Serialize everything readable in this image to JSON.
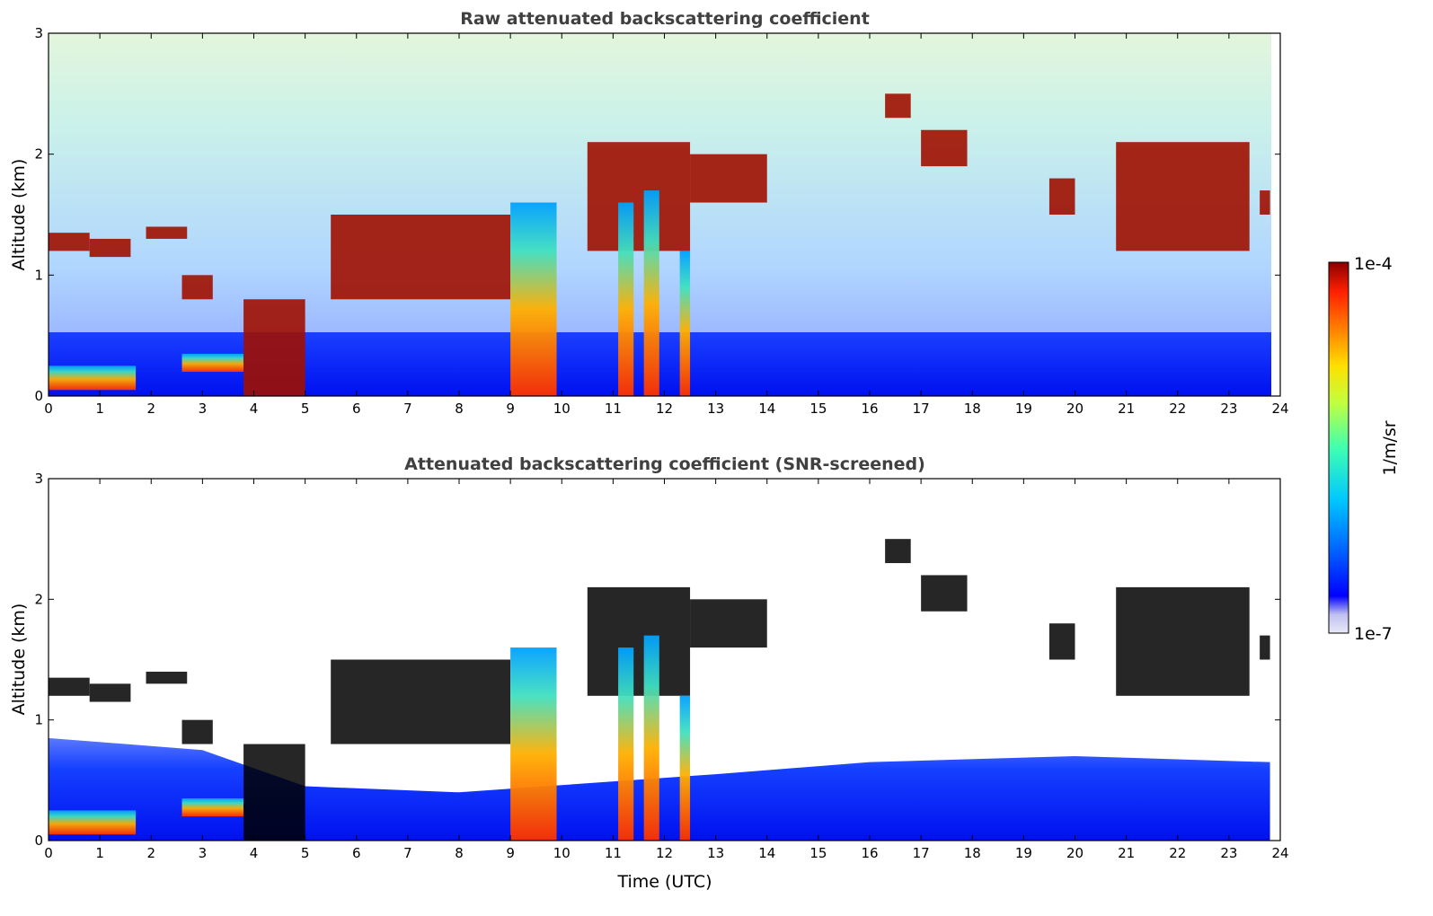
{
  "chart_data": [
    {
      "type": "heatmap",
      "title": "Raw attenuated backscattering coefficient",
      "xlabel": "",
      "ylabel": "Altitude (km)",
      "xlim": [
        0,
        24
      ],
      "ylim": [
        0,
        3
      ],
      "x_ticks": [
        "0",
        "1",
        "2",
        "3",
        "4",
        "5",
        "6",
        "7",
        "8",
        "9",
        "10",
        "11",
        "12",
        "13",
        "14",
        "15",
        "16",
        "17",
        "18",
        "19",
        "20",
        "21",
        "22",
        "23",
        "24"
      ],
      "y_ticks": [
        "0",
        "1",
        "2",
        "3"
      ],
      "data_end_hour": 23.8,
      "background_noise": [
        {
          "alt_range": [
            0,
            0.4
          ],
          "level": "high"
        },
        {
          "alt_range": [
            0.4,
            3
          ],
          "level": "noisy, increasing with altitude and daylight"
        }
      ],
      "cloud_layers": [
        {
          "t": [
            0.0,
            0.8
          ],
          "alt_km": [
            1.2,
            1.35
          ],
          "intensity": "1e-4"
        },
        {
          "t": [
            0.8,
            1.6
          ],
          "alt_km": [
            1.15,
            1.3
          ],
          "intensity": "1e-4"
        },
        {
          "t": [
            1.9,
            2.7
          ],
          "alt_km": [
            1.3,
            1.4
          ],
          "intensity": "1e-4"
        },
        {
          "t": [
            2.6,
            3.2
          ],
          "alt_km": [
            0.8,
            1.0
          ],
          "intensity": "1e-4"
        },
        {
          "t": [
            0.0,
            1.7
          ],
          "alt_km": [
            0.05,
            0.25
          ],
          "intensity": "5e-5"
        },
        {
          "t": [
            2.6,
            3.8
          ],
          "alt_km": [
            0.2,
            0.35
          ],
          "intensity": "5e-5"
        },
        {
          "t": [
            3.8,
            5.0
          ],
          "alt_km": [
            0.0,
            0.8
          ],
          "intensity": "1e-4"
        },
        {
          "t": [
            5.5,
            9.0
          ],
          "alt_km": [
            0.8,
            1.5
          ],
          "intensity": "1e-4"
        },
        {
          "t": [
            9.0,
            9.9
          ],
          "alt_km": [
            0.0,
            1.6
          ],
          "intensity": "5e-5"
        },
        {
          "t": [
            10.5,
            12.5
          ],
          "alt_km": [
            1.2,
            2.1
          ],
          "intensity": "1e-4"
        },
        {
          "t": [
            11.1,
            11.4
          ],
          "alt_km": [
            0.0,
            1.6
          ],
          "intensity": "5e-5"
        },
        {
          "t": [
            11.6,
            11.9
          ],
          "alt_km": [
            0.0,
            1.7
          ],
          "intensity": "5e-5"
        },
        {
          "t": [
            12.3,
            12.5
          ],
          "alt_km": [
            0.0,
            1.2
          ],
          "intensity": "5e-5"
        },
        {
          "t": [
            12.5,
            14.0
          ],
          "alt_km": [
            1.6,
            2.0
          ],
          "intensity": "1e-4"
        },
        {
          "t": [
            16.3,
            16.8
          ],
          "alt_km": [
            2.3,
            2.5
          ],
          "intensity": "1e-4"
        },
        {
          "t": [
            17.0,
            17.9
          ],
          "alt_km": [
            1.9,
            2.2
          ],
          "intensity": "1e-4"
        },
        {
          "t": [
            19.5,
            20.0
          ],
          "alt_km": [
            1.5,
            1.8
          ],
          "intensity": "1e-4"
        },
        {
          "t": [
            20.8,
            23.4
          ],
          "alt_km": [
            1.2,
            2.1
          ],
          "intensity": "1e-4"
        },
        {
          "t": [
            23.6,
            23.8
          ],
          "alt_km": [
            1.5,
            1.7
          ],
          "intensity": "1e-4"
        }
      ],
      "colorbar": {
        "min_label": "1e-7",
        "max_label": "1e-4",
        "label": "1/m/sr",
        "scale": "log",
        "colors": [
          "#e8e8f8",
          "#c0c0f0",
          "#0000ff",
          "#0070ff",
          "#00c8ff",
          "#40ffb0",
          "#c0ff40",
          "#ffe000",
          "#ff8000",
          "#ff2000",
          "#8b0000"
        ]
      }
    },
    {
      "type": "heatmap",
      "title": "Attenuated backscattering coefficient (SNR-screened)",
      "xlabel": "Time (UTC)",
      "ylabel": "Altitude (km)",
      "xlim": [
        0,
        24
      ],
      "ylim": [
        0,
        3
      ],
      "x_ticks": [
        "0",
        "1",
        "2",
        "3",
        "4",
        "5",
        "6",
        "7",
        "8",
        "9",
        "10",
        "11",
        "12",
        "13",
        "14",
        "15",
        "16",
        "17",
        "18",
        "19",
        "20",
        "21",
        "22",
        "23",
        "24"
      ],
      "y_ticks": [
        "0",
        "1",
        "2",
        "3"
      ],
      "screening": "low-SNR pixels removed (white); cloud cores shown in black",
      "boundary_layer_top_km": [
        {
          "t": 0,
          "alt": 0.85
        },
        {
          "t": 3,
          "alt": 0.75
        },
        {
          "t": 5,
          "alt": 0.45
        },
        {
          "t": 8,
          "alt": 0.4
        },
        {
          "t": 13,
          "alt": 0.55
        },
        {
          "t": 16,
          "alt": 0.65
        },
        {
          "t": 20,
          "alt": 0.7
        },
        {
          "t": 23.8,
          "alt": 0.65
        }
      ]
    }
  ]
}
